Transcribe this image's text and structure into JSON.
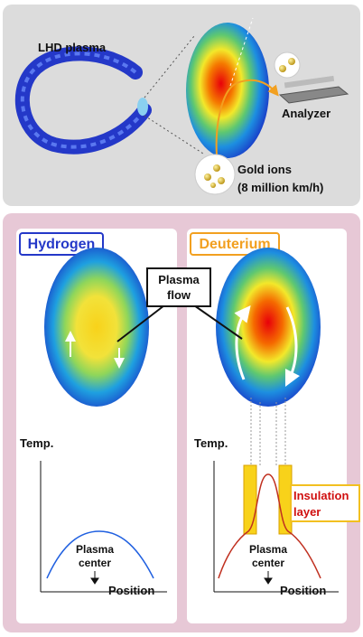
{
  "top": {
    "plasma_label": "LHD plasma",
    "analyzer_label": "Analyzer",
    "ions_label": [
      "Gold ions",
      "(8 million km/h)"
    ]
  },
  "callout": {
    "lines": [
      "Plasma",
      "flow"
    ]
  },
  "panels": [
    {
      "title": "Hydrogen",
      "y_axis": "Temp.",
      "x_axis": "Position",
      "center_label": [
        "Plasma",
        "center"
      ]
    },
    {
      "title": "Deuterium",
      "y_axis": "Temp.",
      "x_axis": "Position",
      "center_label": [
        "Plasma",
        "center"
      ],
      "layer_label": [
        "Insulation",
        "layer"
      ]
    }
  ]
}
